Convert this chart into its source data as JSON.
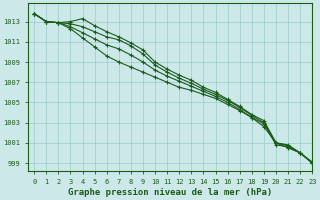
{
  "title": "Graphe pression niveau de la mer (hPa)",
  "background_color": "#cce8e8",
  "grid_color": "#99cccc",
  "line_color": "#1a5c1a",
  "xlim": [
    -0.5,
    23
  ],
  "ylim": [
    998.2,
    1014.8
  ],
  "yticks": [
    999,
    1001,
    1003,
    1005,
    1007,
    1009,
    1011,
    1013
  ],
  "xticks": [
    0,
    1,
    2,
    3,
    4,
    5,
    6,
    7,
    8,
    9,
    10,
    11,
    12,
    13,
    14,
    15,
    16,
    17,
    18,
    19,
    20,
    21,
    22,
    23
  ],
  "lines": [
    [
      1013.8,
      1013.0,
      1012.9,
      1013.0,
      1013.3,
      1012.6,
      1012.0,
      1011.5,
      1010.9,
      1010.2,
      1009.0,
      1008.3,
      1007.7,
      1007.2,
      1006.5,
      1006.0,
      1005.3,
      1004.6,
      1003.8,
      1003.2,
      1001.0,
      1000.8,
      1000.0,
      999.1
    ],
    [
      1013.8,
      1013.0,
      1012.9,
      1012.8,
      1012.5,
      1012.0,
      1011.5,
      1011.2,
      1010.6,
      1009.8,
      1008.7,
      1008.0,
      1007.4,
      1006.9,
      1006.3,
      1005.8,
      1005.2,
      1004.5,
      1003.7,
      1003.0,
      1001.0,
      1000.7,
      1000.0,
      999.0
    ],
    [
      1013.8,
      1013.0,
      1012.9,
      1012.5,
      1011.9,
      1011.3,
      1010.7,
      1010.3,
      1009.7,
      1009.0,
      1008.2,
      1007.6,
      1007.1,
      1006.6,
      1006.1,
      1005.6,
      1005.0,
      1004.3,
      1003.5,
      1002.9,
      1000.8,
      1000.6,
      1000.0,
      999.0
    ],
    [
      1013.8,
      1013.0,
      1012.9,
      1012.3,
      1011.4,
      1010.5,
      1009.6,
      1009.0,
      1008.5,
      1008.0,
      1007.5,
      1007.0,
      1006.5,
      1006.2,
      1005.8,
      1005.4,
      1004.8,
      1004.2,
      1003.5,
      1002.6,
      1001.0,
      1000.5,
      1000.0,
      999.0
    ]
  ],
  "marker": "+",
  "markersize": 3.5,
  "linewidth": 0.8,
  "tick_fontsize": 5.0,
  "xlabel_fontsize": 6.5
}
